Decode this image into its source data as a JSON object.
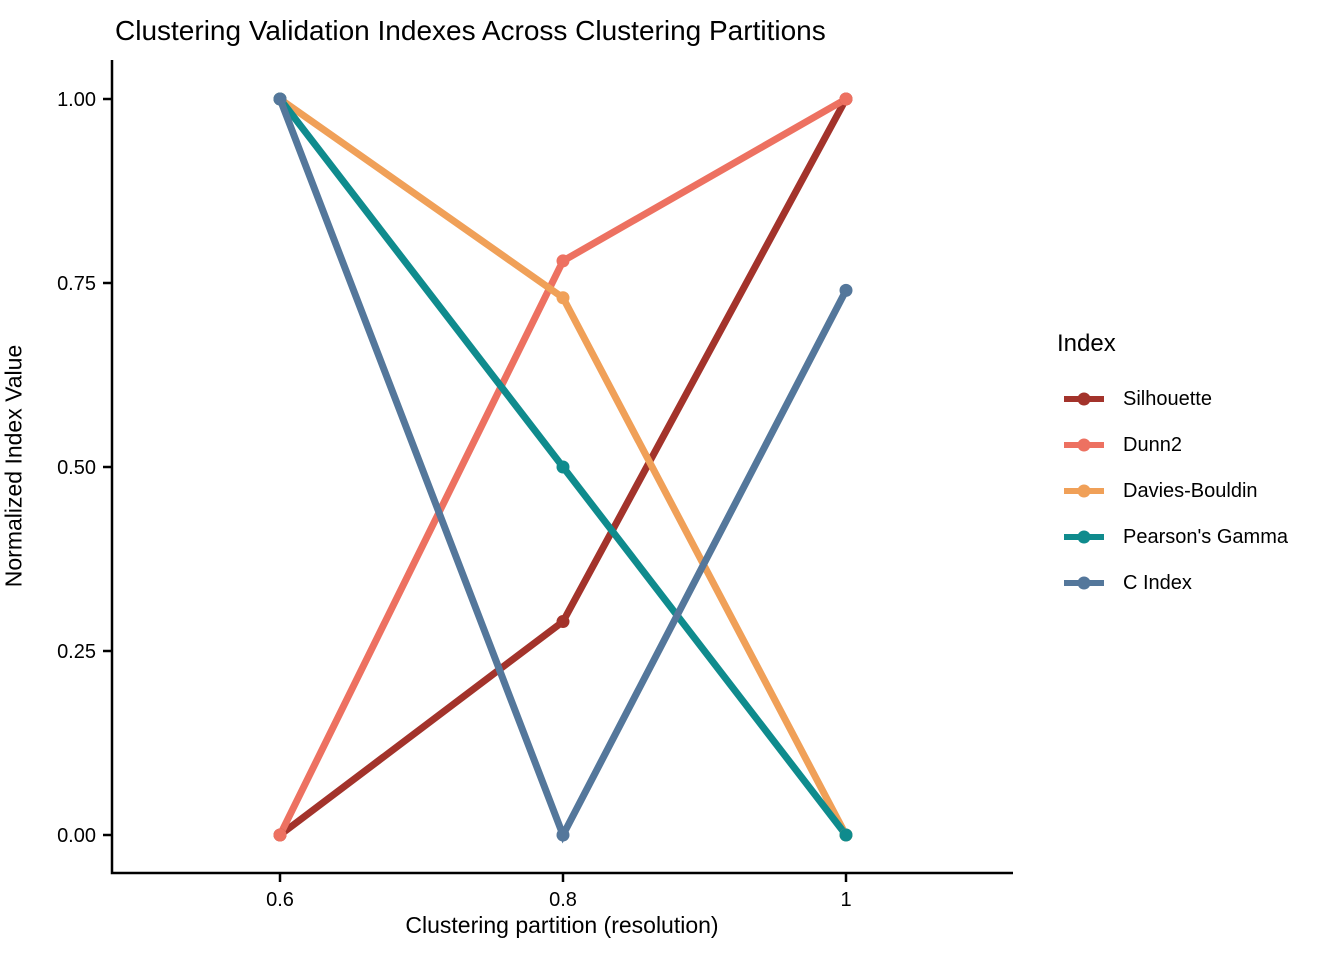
{
  "figure": {
    "background_color": "#FFFFFF",
    "axis_color": "#000000",
    "text_color": "#000000"
  },
  "chart_data": {
    "type": "line",
    "title": "Clustering Validation Indexes Across Clustering Partitions",
    "xlabel": "Clustering partition (resolution)",
    "ylabel": "Normalized Index Value",
    "x": [
      0.6,
      0.8,
      1
    ],
    "x_tick_labels": [
      "0.6",
      "0.8",
      "1"
    ],
    "y_ticks": [
      0,
      0.25,
      0.5,
      0.75,
      1
    ],
    "y_tick_labels": [
      "0.00",
      "0.25",
      "0.50",
      "0.75",
      "1.00"
    ],
    "xlim": [
      0.48,
      1.12
    ],
    "ylim": [
      0,
      1
    ],
    "grid": false,
    "legend": {
      "title": "Index",
      "position": "right"
    },
    "series": [
      {
        "name": "Silhouette",
        "color": "#A3332B",
        "values": [
          0,
          0.29,
          1
        ]
      },
      {
        "name": "Dunn2",
        "color": "#ED7161",
        "values": [
          0,
          0.78,
          1
        ]
      },
      {
        "name": "Davies-Bouldin",
        "color": "#F0A058",
        "values": [
          1,
          0.73,
          0
        ]
      },
      {
        "name": "Pearson's Gamma",
        "color": "#0F8B8D",
        "values": [
          1,
          0.5,
          0
        ]
      },
      {
        "name": "C Index",
        "color": "#54779B",
        "values": [
          1,
          0,
          0.74
        ]
      }
    ]
  }
}
